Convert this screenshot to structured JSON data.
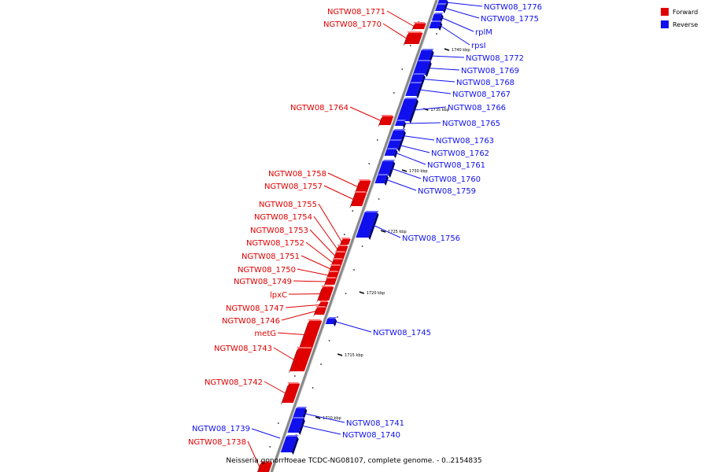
{
  "legend": {
    "forward_label": "Forward",
    "reverse_label": "Reverse",
    "forward_color": "#e00000",
    "reverse_color": "#1010ee"
  },
  "caption": "Neisseria gonorrhoeae TCDC-NG08107, complete genome. - 0..2154835",
  "ticks": [
    "1740 kbp",
    "1735 kbp",
    "1730 kbp",
    "1725 kbp",
    "1720 kbp",
    "1715 kbp",
    "1710 kbp"
  ],
  "genes": {
    "forward": [
      "NGTW08_1771",
      "NGTW08_1770",
      "NGTW08_1764",
      "NGTW08_1758",
      "NGTW08_1757",
      "NGTW08_1755",
      "NGTW08_1754",
      "NGTW08_1753",
      "NGTW08_1752",
      "NGTW08_1751",
      "NGTW08_1750",
      "NGTW08_1749",
      "lpxC",
      "NGTW08_1747",
      "NGTW08_1746",
      "metG",
      "NGTW08_1743",
      "NGTW08_1742",
      "NGTW08_1738"
    ],
    "reverse": [
      "NGTW08_1776",
      "NGTW08_1775",
      "rplM",
      "rpsI",
      "NGTW08_1772",
      "NGTW08_1769",
      "NGTW08_1768",
      "NGTW08_1767",
      "NGTW08_1766",
      "NGTW08_1765",
      "NGTW08_1763",
      "NGTW08_1762",
      "NGTW08_1761",
      "NGTW08_1760",
      "NGTW08_1759",
      "NGTW08_1756",
      "NGTW08_1745",
      "NGTW08_1741",
      "NGTW08_1740",
      "NGTW08_1739"
    ]
  }
}
